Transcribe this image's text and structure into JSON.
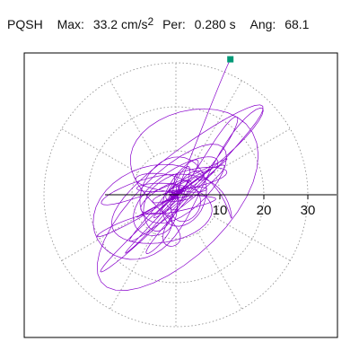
{
  "header": {
    "station": "PQSH",
    "max_label": "Max:",
    "max_value": "33.2",
    "max_unit": "cm/s",
    "max_unit_exp": "2",
    "per_label": "Per:",
    "per_value": "0.280 s",
    "ang_label": "Ang:",
    "ang_value": "68.1"
  },
  "colors": {
    "trace": "#8800cc",
    "marker": "#009977",
    "grid": "#888888",
    "axis": "#000000"
  },
  "chart_data": {
    "type": "scatter",
    "polar": true,
    "r_ticks": [
      10,
      20,
      30
    ],
    "r_tick_labels": [
      "10",
      "20",
      "30"
    ],
    "r_max": 40,
    "grid": true,
    "angular_grid_deg": [
      30,
      60,
      120,
      150,
      210,
      240,
      300,
      330
    ],
    "max_amplitude": 33.2,
    "max_angle_deg": 68.1,
    "seed": 7
  }
}
